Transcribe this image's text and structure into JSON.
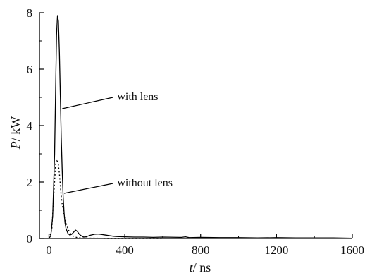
{
  "chart_data": {
    "type": "line",
    "title": "",
    "xlabel_var": "t",
    "xlabel_unit": "/ ns",
    "ylabel_var": "P",
    "ylabel_unit": "/ kW",
    "xlim": [
      -50,
      1600
    ],
    "ylim": [
      0,
      8
    ],
    "xticks": [
      0,
      400,
      800,
      1200,
      1600
    ],
    "yticks": [
      0,
      2,
      4,
      6,
      8
    ],
    "grid": false,
    "series": [
      {
        "name": "with lens",
        "style": "solid",
        "x": [
          0,
          10,
          20,
          30,
          35,
          40,
          45,
          50,
          55,
          60,
          65,
          70,
          75,
          80,
          85,
          90,
          100,
          110,
          120,
          130,
          140,
          150,
          160,
          170,
          180,
          190,
          200,
          220,
          240,
          260,
          280,
          300,
          320,
          340,
          360,
          400,
          450,
          500,
          550,
          600,
          700,
          720,
          740,
          800,
          900,
          1000,
          1100,
          1200,
          1300,
          1400,
          1500,
          1600
        ],
        "y": [
          0,
          0.1,
          0.8,
          3.0,
          5.2,
          7.2,
          7.9,
          7.7,
          6.6,
          5.1,
          3.6,
          2.4,
          1.5,
          0.9,
          0.55,
          0.35,
          0.18,
          0.12,
          0.15,
          0.22,
          0.3,
          0.25,
          0.15,
          0.1,
          0.06,
          0.05,
          0.07,
          0.12,
          0.15,
          0.16,
          0.14,
          0.12,
          0.1,
          0.08,
          0.07,
          0.06,
          0.05,
          0.05,
          0.04,
          0.05,
          0.04,
          0.06,
          0.03,
          0.04,
          0.03,
          0.03,
          0.02,
          0.03,
          0.02,
          0.02,
          0.02,
          0.01
        ]
      },
      {
        "name": "without lens",
        "style": "dotted",
        "x": [
          0,
          15,
          25,
          35,
          40,
          45,
          50,
          55,
          60,
          65,
          70,
          80,
          90,
          100,
          110,
          120,
          130,
          140,
          150,
          170,
          200,
          250,
          300,
          400,
          500,
          600
        ],
        "y": [
          0,
          0.3,
          1.5,
          2.6,
          2.8,
          2.75,
          2.6,
          2.3,
          1.9,
          1.5,
          1.2,
          0.8,
          0.55,
          0.35,
          0.2,
          0.12,
          0.08,
          0.05,
          0.03,
          0.02,
          0.01,
          0.01,
          0.0,
          0.0,
          0.0,
          0.0
        ]
      }
    ],
    "annotations": [
      {
        "text": "with lens",
        "series": 0,
        "point_x": 70,
        "point_y": 4.6,
        "label_x": 360,
        "label_y": 4.9
      },
      {
        "text": "without lens",
        "series": 1,
        "point_x": 80,
        "point_y": 1.6,
        "label_x": 360,
        "label_y": 1.85
      }
    ]
  }
}
